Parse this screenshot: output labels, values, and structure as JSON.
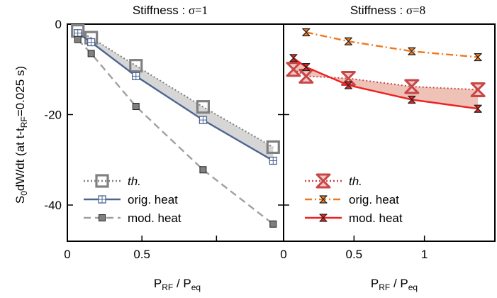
{
  "y_axis_label": {
    "main": "S",
    "sub0": "0",
    "mid": "dW/dt  (at  t-t",
    "sub1": "RF",
    "end": "=0.025 s)"
  },
  "x_axis_label": {
    "p": "P",
    "rf": "RF",
    "sep": " / P",
    "eq": "eq"
  },
  "chart_data": [
    {
      "type": "line",
      "title_prefix": "Stiffness : ",
      "title_sym": "σ=1",
      "xlim": [
        0,
        1.45
      ],
      "ylim": [
        -48,
        0
      ],
      "x_ticks": [
        0,
        0.5,
        1
      ],
      "x_tick_labels": [
        "0",
        "0.5",
        ""
      ],
      "y_ticks": [
        0,
        -20,
        -40
      ],
      "y_tick_labels": [
        "0",
        "-20",
        "-40"
      ],
      "legend_position": "bottom-left",
      "series": [
        {
          "key": "th",
          "name": "th.",
          "color": "#808080",
          "dash": "dotted",
          "marker": "hollow-square",
          "x": [
            0.07,
            0.16,
            0.46,
            0.91,
            1.38
          ],
          "y": [
            -1.5,
            -3.0,
            -9.2,
            -18.3,
            -27.2
          ]
        },
        {
          "key": "orig",
          "name": "orig. heat",
          "color": "#4d6591",
          "dash": "solid",
          "marker": "grid-square",
          "x": [
            0.07,
            0.16,
            0.46,
            0.91,
            1.38
          ],
          "y": [
            -2.0,
            -4.0,
            -11.5,
            -21.2,
            -30.2
          ]
        },
        {
          "key": "mod",
          "name": "mod. heat",
          "color": "#a0a0a0",
          "dash": "dashed",
          "marker": "filled-square",
          "x": [
            0.07,
            0.16,
            0.46,
            0.91,
            1.38
          ],
          "y": [
            -3.4,
            -6.5,
            -18.2,
            -32.2,
            -44.2
          ]
        }
      ],
      "band": {
        "between": [
          "th",
          "orig"
        ],
        "color": "#d6d6d6"
      }
    },
    {
      "type": "line",
      "title_prefix": "Stiffness : ",
      "title_sym": "σ=8",
      "xlim": [
        0,
        1.5
      ],
      "ylim": [
        -48,
        0
      ],
      "x_ticks": [
        0,
        0.5,
        1
      ],
      "x_tick_labels": [
        "0",
        "0.5",
        "1"
      ],
      "y_ticks": [
        0,
        -20,
        -40
      ],
      "y_tick_labels": [
        "",
        "",
        ""
      ],
      "legend_position": "bottom-left",
      "series": [
        {
          "key": "th",
          "name": "th.",
          "color": "#c84646",
          "dash": "dotted",
          "marker": "hourglass-large",
          "x": [
            0.07,
            0.16,
            0.46,
            0.91,
            1.38
          ],
          "y": [
            -10.0,
            -11.5,
            -12.0,
            -13.8,
            -14.5
          ]
        },
        {
          "key": "orig",
          "name": "orig. heat",
          "color": "#f07820",
          "dash": "dashdot",
          "marker": "hourglass",
          "x": [
            0.16,
            0.46,
            0.91,
            1.38
          ],
          "y": [
            -1.8,
            -3.8,
            -6.0,
            -7.3
          ]
        },
        {
          "key": "mod",
          "name": "mod. heat",
          "color": "#ee2020",
          "dash": "solid",
          "marker": "hourglass",
          "x": [
            0.07,
            0.16,
            0.46,
            0.91,
            1.38
          ],
          "y": [
            -7.5,
            -9.5,
            -13.5,
            -16.7,
            -18.7
          ]
        }
      ],
      "band": {
        "between": [
          "th",
          "mod"
        ],
        "color": "#efc2b8"
      }
    }
  ]
}
